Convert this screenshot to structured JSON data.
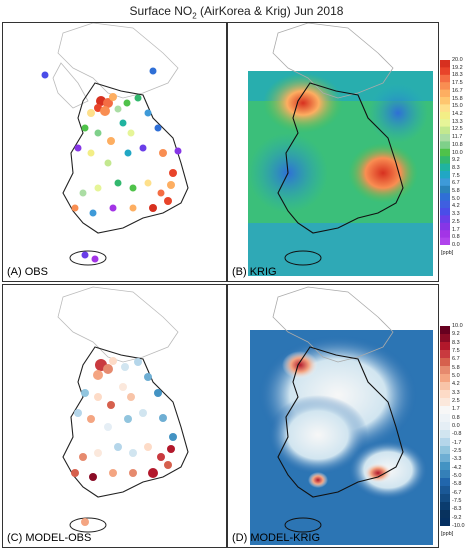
{
  "title_main": "Surface NO",
  "title_sub": "2",
  "title_rest": " (AirKorea & Krig) Jun 2018",
  "panels": [
    {
      "label": "(A) OBS"
    },
    {
      "label": "(B) KRIG"
    },
    {
      "label": "(C) MODEL-OBS"
    },
    {
      "label": "(D) MODEL-KRIG"
    }
  ],
  "colorbar_top": {
    "ticks": [
      "20.0",
      "19.2",
      "18.3",
      "17.5",
      "16.7",
      "15.8",
      "15.0",
      "14.2",
      "13.3",
      "12.5",
      "11.7",
      "10.8",
      "10.0",
      "9.2",
      "8.3",
      "7.5",
      "6.7",
      "5.8",
      "5.0",
      "4.2",
      "3.3",
      "2.5",
      "1.7",
      "0.8",
      "0.0"
    ],
    "unit": "[ppb]",
    "colors": [
      "#d7301f",
      "#e8442a",
      "#f46d43",
      "#f98e52",
      "#fdae61",
      "#fec66f",
      "#fee08b",
      "#f3ee86",
      "#e6f598",
      "#c3e88f",
      "#abdda4",
      "#7fd08a",
      "#4fc24a",
      "#33b86e",
      "#20b3a0",
      "#21a7c4",
      "#3e9ad8",
      "#2b83ba",
      "#2f6fd6",
      "#3f5fe0",
      "#4a4de8",
      "#6a3ee8",
      "#8636e6",
      "#a334e6",
      "#b044ec"
    ]
  },
  "colorbar_bottom": {
    "ticks": [
      "10.0",
      "9.2",
      "8.3",
      "7.5",
      "6.7",
      "5.8",
      "5.0",
      "4.2",
      "3.3",
      "2.5",
      "1.7",
      "0.8",
      "0.0",
      "-0.8",
      "-1.7",
      "-2.5",
      "-3.3",
      "-4.2",
      "-5.0",
      "-5.8",
      "-6.7",
      "-7.5",
      "-8.3",
      "-9.2",
      "-10.0"
    ],
    "unit": "[ppb]",
    "colors": [
      "#67001f",
      "#8a0b25",
      "#b2182b",
      "#c93a3f",
      "#d6604d",
      "#e68a6e",
      "#f4a582",
      "#f8c4a8",
      "#fddbc7",
      "#fbe8dc",
      "#f7f7f7",
      "#eef3f7",
      "#e5eef5",
      "#d1e5f0",
      "#b5d6ea",
      "#92c5de",
      "#6eaed3",
      "#4393c3",
      "#3580b8",
      "#2166ac",
      "#1a5896",
      "#134b82",
      "#0b3c6e",
      "#08325e",
      "#053061"
    ]
  }
}
